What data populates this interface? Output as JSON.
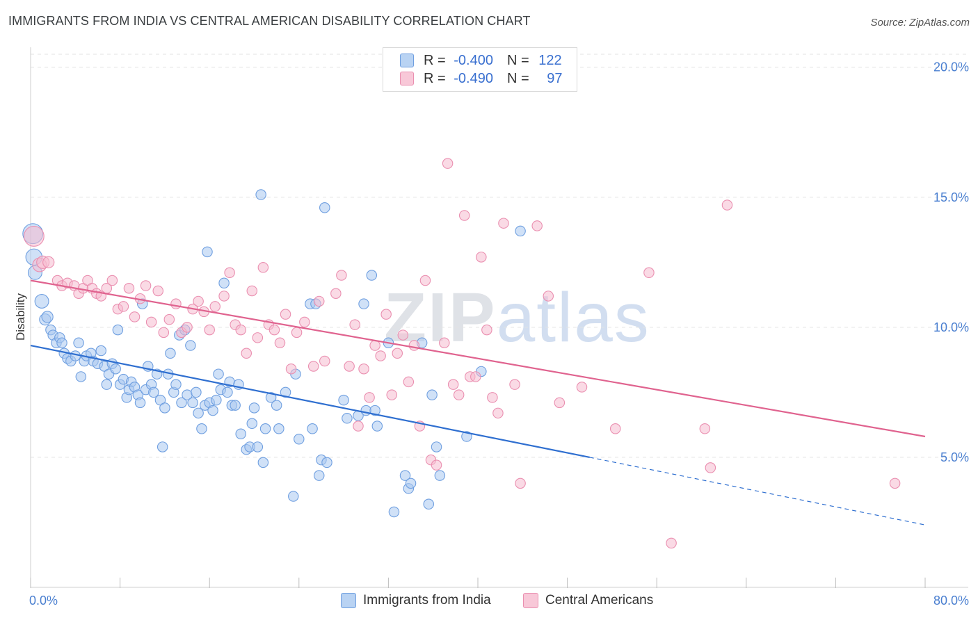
{
  "title": "IMMIGRANTS FROM INDIA VS CENTRAL AMERICAN DISABILITY CORRELATION CHART",
  "source": "Source: ZipAtlas.com",
  "watermark": {
    "zip": "ZIP",
    "atlas": "atlas"
  },
  "legend": {
    "rows": [
      {
        "r_label": "R = ",
        "r_value": "-0.400",
        "n_label": "N = ",
        "n_value": "122"
      },
      {
        "r_label": "R = ",
        "r_value": "-0.490",
        "n_label": "N = ",
        "n_value": "97"
      }
    ]
  },
  "bottom_legend": [
    "Immigrants from India",
    "Central Americans"
  ],
  "chart_data": {
    "type": "scatter",
    "ylabel": "Disability",
    "xlim": [
      0,
      80
    ],
    "ylim": [
      0,
      20.5
    ],
    "x_tick_labels": [
      {
        "value": 0,
        "label": "0.0%"
      },
      {
        "value": 80,
        "label": "80.0%"
      }
    ],
    "x_tick_marks": [
      0,
      8,
      16,
      24,
      32,
      40,
      48,
      56,
      64,
      72,
      80
    ],
    "y_ticks": [
      {
        "value": 5,
        "label": "5.0%"
      },
      {
        "value": 10,
        "label": "10.0%"
      },
      {
        "value": 15,
        "label": "15.0%"
      },
      {
        "value": 20,
        "label": "20.0%"
      }
    ],
    "colors": {
      "india_fill": "#a9c8f0",
      "india_stroke": "#6f9fe0",
      "india_line": "#2f6fd0",
      "central_fill": "#f5bccf",
      "central_stroke": "#ea8fb0",
      "central_line": "#e0638f"
    },
    "series": [
      {
        "name": "Immigrants from India",
        "trend": {
          "x": [
            0,
            50,
            80
          ],
          "y": [
            9.3,
            5.0,
            2.4
          ],
          "solid_until": 50
        },
        "points": [
          [
            0.2,
            13.6,
            1.6
          ],
          [
            0.3,
            12.7,
            1.3
          ],
          [
            0.4,
            12.1,
            1.1
          ],
          [
            1.0,
            11.0,
            1.1
          ],
          [
            1.3,
            10.3,
            0.9
          ],
          [
            1.5,
            10.4,
            0.9
          ],
          [
            1.8,
            9.9,
            0.8
          ],
          [
            2.0,
            9.7,
            0.8
          ],
          [
            2.3,
            9.4,
            0.8
          ],
          [
            2.6,
            9.6,
            0.8
          ],
          [
            2.8,
            9.4,
            0.8
          ],
          [
            3.0,
            9.0,
            0.8
          ],
          [
            3.3,
            8.8,
            0.8
          ],
          [
            3.6,
            8.7,
            0.8
          ],
          [
            4.0,
            8.9,
            0.8
          ],
          [
            4.3,
            9.4,
            0.8
          ],
          [
            4.5,
            8.1,
            0.8
          ],
          [
            4.8,
            8.7,
            0.8
          ],
          [
            5.0,
            8.9,
            0.8
          ],
          [
            5.4,
            9.0,
            0.8
          ],
          [
            5.6,
            8.7,
            0.8
          ],
          [
            6.0,
            8.6,
            0.8
          ],
          [
            6.3,
            9.1,
            0.8
          ],
          [
            6.6,
            8.5,
            0.8
          ],
          [
            6.8,
            7.8,
            0.8
          ],
          [
            7.0,
            8.2,
            0.8
          ],
          [
            7.3,
            8.6,
            0.8
          ],
          [
            7.6,
            8.4,
            0.8
          ],
          [
            7.8,
            9.9,
            0.8
          ],
          [
            8.0,
            7.8,
            0.8
          ],
          [
            8.3,
            8.0,
            0.8
          ],
          [
            8.6,
            7.3,
            0.8
          ],
          [
            8.8,
            7.6,
            0.8
          ],
          [
            9.0,
            7.9,
            0.8
          ],
          [
            9.3,
            7.7,
            0.8
          ],
          [
            9.6,
            7.4,
            0.8
          ],
          [
            9.8,
            7.1,
            0.8
          ],
          [
            10.0,
            10.9,
            0.8
          ],
          [
            10.3,
            7.6,
            0.8
          ],
          [
            10.5,
            8.5,
            0.8
          ],
          [
            10.8,
            7.8,
            0.8
          ],
          [
            11.0,
            7.5,
            0.8
          ],
          [
            11.3,
            8.2,
            0.8
          ],
          [
            11.6,
            7.2,
            0.8
          ],
          [
            11.8,
            5.4,
            0.8
          ],
          [
            12.0,
            6.9,
            0.8
          ],
          [
            12.3,
            8.2,
            0.8
          ],
          [
            12.5,
            9.0,
            0.8
          ],
          [
            12.8,
            7.5,
            0.8
          ],
          [
            13.0,
            7.8,
            0.8
          ],
          [
            13.3,
            9.7,
            0.8
          ],
          [
            13.5,
            7.1,
            0.8
          ],
          [
            13.8,
            9.9,
            0.8
          ],
          [
            14.0,
            7.4,
            0.8
          ],
          [
            14.3,
            9.3,
            0.8
          ],
          [
            14.5,
            7.1,
            0.8
          ],
          [
            14.8,
            7.5,
            0.8
          ],
          [
            15.0,
            6.7,
            0.8
          ],
          [
            15.3,
            6.1,
            0.8
          ],
          [
            15.6,
            7.0,
            0.8
          ],
          [
            15.8,
            12.9,
            0.8
          ],
          [
            16.0,
            7.1,
            0.8
          ],
          [
            16.3,
            6.8,
            0.8
          ],
          [
            16.6,
            7.2,
            0.8
          ],
          [
            16.8,
            8.2,
            0.8
          ],
          [
            17.0,
            7.6,
            0.8
          ],
          [
            17.3,
            11.7,
            0.8
          ],
          [
            17.6,
            7.5,
            0.8
          ],
          [
            17.8,
            7.9,
            0.8
          ],
          [
            18.0,
            7.0,
            0.8
          ],
          [
            18.3,
            7.0,
            0.8
          ],
          [
            18.6,
            7.8,
            0.8
          ],
          [
            18.8,
            5.9,
            0.8
          ],
          [
            19.3,
            5.3,
            0.8
          ],
          [
            19.6,
            5.4,
            0.8
          ],
          [
            19.8,
            6.3,
            0.8
          ],
          [
            20.0,
            6.9,
            0.8
          ],
          [
            20.3,
            5.4,
            0.8
          ],
          [
            20.6,
            15.1,
            0.8
          ],
          [
            20.8,
            4.8,
            0.8
          ],
          [
            21.0,
            6.1,
            0.8
          ],
          [
            21.5,
            7.3,
            0.8
          ],
          [
            22.0,
            7.0,
            0.8
          ],
          [
            22.2,
            6.1,
            0.8
          ],
          [
            22.8,
            7.5,
            0.8
          ],
          [
            23.5,
            3.5,
            0.8
          ],
          [
            23.7,
            8.2,
            0.8
          ],
          [
            24.0,
            5.7,
            0.8
          ],
          [
            25.0,
            10.9,
            0.8
          ],
          [
            25.2,
            6.1,
            0.8
          ],
          [
            25.5,
            10.9,
            0.8
          ],
          [
            25.8,
            4.3,
            0.8
          ],
          [
            26.0,
            4.9,
            0.8
          ],
          [
            26.3,
            14.6,
            0.8
          ],
          [
            26.5,
            4.8,
            0.8
          ],
          [
            28.0,
            7.2,
            0.8
          ],
          [
            28.3,
            6.5,
            0.8
          ],
          [
            29.3,
            6.6,
            0.8
          ],
          [
            29.8,
            10.9,
            0.8
          ],
          [
            30.0,
            6.8,
            0.8
          ],
          [
            30.5,
            12.0,
            0.8
          ],
          [
            30.8,
            6.8,
            0.8
          ],
          [
            31.0,
            6.2,
            0.8
          ],
          [
            32.0,
            9.4,
            0.8
          ],
          [
            32.5,
            2.9,
            0.8
          ],
          [
            33.5,
            4.3,
            0.8
          ],
          [
            33.8,
            3.8,
            0.8
          ],
          [
            34.0,
            4.0,
            0.8
          ],
          [
            35.0,
            9.4,
            0.8
          ],
          [
            35.6,
            3.2,
            0.8
          ],
          [
            35.9,
            7.4,
            0.8
          ],
          [
            36.3,
            5.4,
            0.8
          ],
          [
            36.6,
            4.3,
            0.8
          ],
          [
            39.0,
            5.8,
            0.8
          ],
          [
            40.3,
            8.3,
            0.8
          ],
          [
            43.8,
            13.7,
            0.8
          ]
        ]
      },
      {
        "name": "Central Americans",
        "trend": {
          "x": [
            0,
            80
          ],
          "y": [
            11.8,
            5.8
          ]
        },
        "points": [
          [
            0.3,
            13.5,
            1.6
          ],
          [
            0.8,
            12.4,
            1.1
          ],
          [
            1.1,
            12.5,
            1.0
          ],
          [
            1.6,
            12.5,
            0.9
          ],
          [
            2.4,
            11.8,
            0.8
          ],
          [
            2.8,
            11.6,
            0.8
          ],
          [
            3.3,
            11.7,
            0.8
          ],
          [
            3.9,
            11.6,
            0.8
          ],
          [
            4.3,
            11.3,
            0.8
          ],
          [
            4.7,
            11.5,
            0.8
          ],
          [
            5.1,
            11.8,
            0.8
          ],
          [
            5.5,
            11.5,
            0.8
          ],
          [
            5.9,
            11.3,
            0.8
          ],
          [
            6.3,
            11.2,
            0.8
          ],
          [
            6.8,
            11.5,
            0.8
          ],
          [
            7.3,
            11.8,
            0.8
          ],
          [
            7.8,
            10.7,
            0.8
          ],
          [
            8.3,
            10.8,
            0.8
          ],
          [
            8.8,
            11.5,
            0.8
          ],
          [
            9.3,
            10.4,
            0.8
          ],
          [
            9.8,
            11.1,
            0.8
          ],
          [
            10.3,
            11.6,
            0.8
          ],
          [
            10.8,
            10.2,
            0.8
          ],
          [
            11.4,
            11.4,
            0.8
          ],
          [
            11.9,
            9.8,
            0.8
          ],
          [
            12.4,
            10.3,
            0.8
          ],
          [
            13.0,
            10.9,
            0.8
          ],
          [
            13.5,
            9.8,
            0.8
          ],
          [
            14.0,
            10.0,
            0.8
          ],
          [
            14.5,
            10.7,
            0.8
          ],
          [
            15.0,
            11.0,
            0.8
          ],
          [
            15.5,
            10.6,
            0.8
          ],
          [
            16.0,
            9.9,
            0.8
          ],
          [
            16.5,
            10.8,
            0.8
          ],
          [
            17.3,
            11.2,
            0.8
          ],
          [
            17.8,
            12.1,
            0.8
          ],
          [
            18.3,
            10.1,
            0.8
          ],
          [
            18.8,
            9.9,
            0.8
          ],
          [
            19.3,
            9.0,
            0.8
          ],
          [
            19.8,
            11.4,
            0.8
          ],
          [
            20.3,
            9.6,
            0.8
          ],
          [
            20.8,
            12.3,
            0.8
          ],
          [
            21.3,
            10.1,
            0.8
          ],
          [
            21.8,
            9.9,
            0.8
          ],
          [
            22.3,
            9.4,
            0.8
          ],
          [
            22.8,
            10.5,
            0.8
          ],
          [
            23.3,
            8.4,
            0.8
          ],
          [
            23.8,
            9.8,
            0.8
          ],
          [
            24.5,
            10.2,
            0.8
          ],
          [
            25.3,
            8.5,
            0.8
          ],
          [
            25.8,
            11.0,
            0.8
          ],
          [
            26.3,
            8.7,
            0.8
          ],
          [
            27.3,
            11.3,
            0.8
          ],
          [
            27.8,
            12.0,
            0.8
          ],
          [
            28.5,
            8.5,
            0.8
          ],
          [
            29.0,
            10.1,
            0.8
          ],
          [
            29.3,
            6.2,
            0.8
          ],
          [
            29.8,
            8.4,
            0.8
          ],
          [
            30.3,
            7.3,
            0.8
          ],
          [
            30.8,
            9.3,
            0.8
          ],
          [
            31.3,
            8.9,
            0.8
          ],
          [
            31.8,
            10.5,
            0.8
          ],
          [
            32.3,
            7.4,
            0.8
          ],
          [
            32.8,
            9.0,
            0.8
          ],
          [
            33.3,
            9.7,
            0.8
          ],
          [
            33.8,
            7.9,
            0.8
          ],
          [
            34.3,
            9.3,
            0.8
          ],
          [
            34.8,
            6.2,
            0.8
          ],
          [
            35.3,
            11.8,
            0.8
          ],
          [
            35.8,
            4.9,
            0.8
          ],
          [
            36.3,
            4.7,
            0.8
          ],
          [
            37.0,
            9.4,
            0.8
          ],
          [
            37.3,
            16.3,
            0.8
          ],
          [
            37.8,
            7.8,
            0.8
          ],
          [
            38.3,
            7.4,
            0.8
          ],
          [
            38.8,
            14.3,
            0.8
          ],
          [
            39.3,
            8.1,
            0.8
          ],
          [
            39.8,
            8.1,
            0.8
          ],
          [
            40.3,
            12.7,
            0.8
          ],
          [
            40.8,
            9.9,
            0.8
          ],
          [
            41.3,
            7.3,
            0.8
          ],
          [
            41.8,
            6.7,
            0.8
          ],
          [
            42.3,
            14.0,
            0.8
          ],
          [
            43.3,
            7.8,
            0.8
          ],
          [
            43.8,
            4.0,
            0.8
          ],
          [
            45.3,
            13.9,
            0.8
          ],
          [
            46.3,
            11.2,
            0.8
          ],
          [
            47.3,
            7.1,
            0.8
          ],
          [
            49.3,
            7.7,
            0.8
          ],
          [
            52.3,
            6.1,
            0.8
          ],
          [
            55.3,
            12.1,
            0.8
          ],
          [
            57.3,
            1.7,
            0.8
          ],
          [
            60.3,
            6.1,
            0.8
          ],
          [
            60.8,
            4.6,
            0.8
          ],
          [
            62.3,
            14.7,
            0.8
          ],
          [
            77.3,
            4.0,
            0.8
          ]
        ]
      }
    ]
  }
}
